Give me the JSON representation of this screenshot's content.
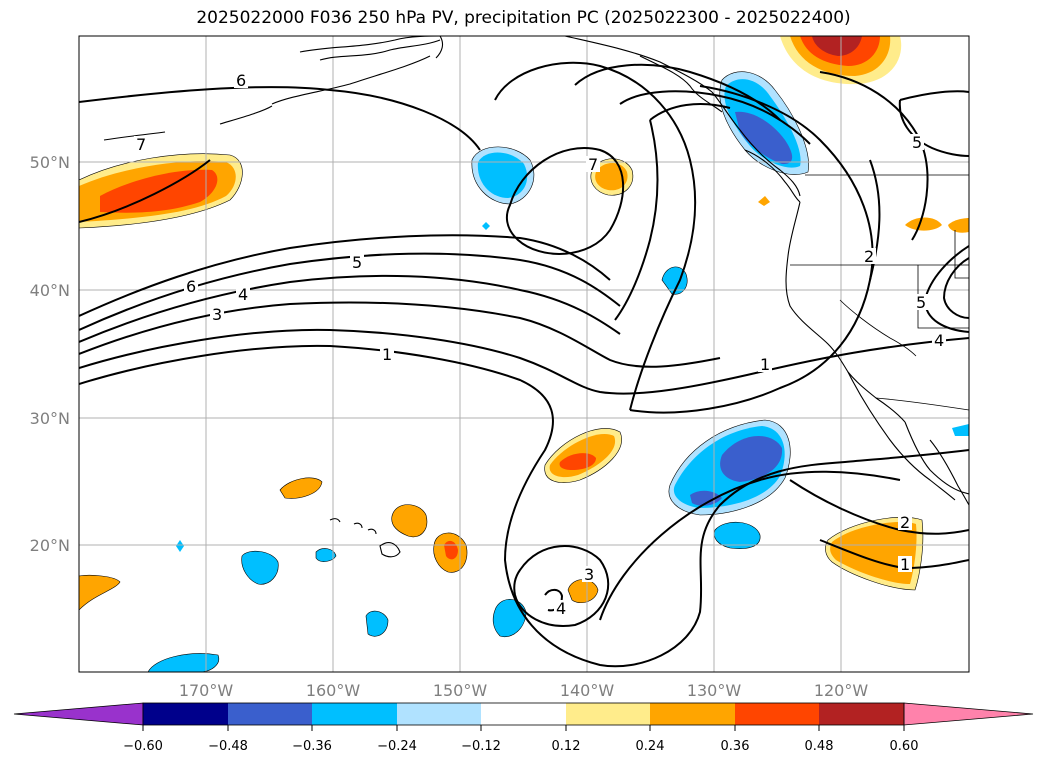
{
  "title": "2025022000 F036 250 hPa PV, precipitation PC (2025022300 - 2025022400)",
  "map": {
    "lon_labels": [
      "170°W",
      "160°W",
      "150°W",
      "140°W",
      "130°W",
      "120°W"
    ],
    "lat_labels": [
      "50°N",
      "40°N",
      "30°N",
      "20°N"
    ],
    "contour_labels": [
      "6",
      "7",
      "5",
      "6",
      "4",
      "3",
      "1",
      "7",
      "1",
      "5",
      "2",
      "5",
      "4",
      "2",
      "1",
      "4",
      "3"
    ]
  },
  "colorbar": {
    "tick_labels": [
      "−0.60",
      "−0.48",
      "−0.36",
      "−0.24",
      "−0.12",
      "0.12",
      "0.24",
      "0.36",
      "0.48",
      "0.60"
    ],
    "colors": [
      "#9932cc",
      "#00008b",
      "#3a5fcd",
      "#00bfff",
      "#b0e2ff",
      "#ffffff",
      "#ffec8b",
      "#ffa500",
      "#ff4500",
      "#b22222",
      "#ff82ab"
    ]
  },
  "shading_colors": {
    "pos_weak": "#ffec8b",
    "pos_mid": "#ffa500",
    "pos_strong": "#ff4500",
    "pos_max": "#b22222",
    "neg_weak": "#b0e2ff",
    "neg_mid": "#00bfff",
    "neg_strong": "#3a5fcd"
  }
}
